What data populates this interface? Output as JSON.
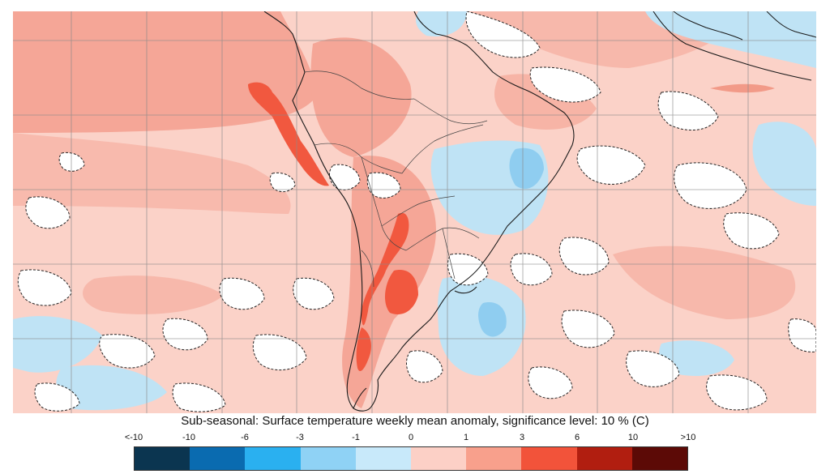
{
  "title": "Sub-seasonal: Surface temperature weekly mean anomaly, significance level: 10 % (C)",
  "legend": {
    "ticks": [
      "<-10",
      "-10",
      "-6",
      "-3",
      "-1",
      "0",
      "1",
      "3",
      "6",
      "10",
      ">10"
    ],
    "colors": [
      "#0b3550",
      "#0a6bb0",
      "#2ab0f0",
      "#8fd2f5",
      "#c8e9fa",
      "#ffffff",
      "#fcd0c6",
      "#f8a08c",
      "#f2533a",
      "#b11e10",
      "#5c0a06"
    ]
  },
  "map": {
    "region": "South America",
    "ocean_anomaly_color": "#fbd2c8",
    "warm_anomaly_color": "#f5a697",
    "strong_warm_color": "#f1583f",
    "cool_anomaly_color": "#bfe3f5",
    "moderate_cool_color": "#8fcdf0",
    "nonsignificant_color": "#ffffff",
    "coastline_color": "#1a1a1a",
    "grid_color": "#8a8a8a"
  }
}
